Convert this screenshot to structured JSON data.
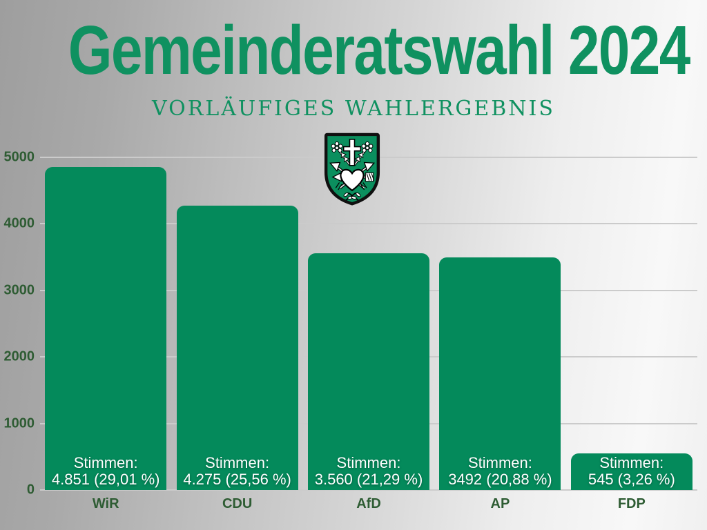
{
  "header": {
    "title": "Gemeinderatswahl 2024",
    "subtitle": "VORLÄUFIGES WAHLERGEBNIS"
  },
  "icons": {
    "crest": "coat-of-arms"
  },
  "theme": {
    "title_green": "#0f9160",
    "bar_green": "#048a5b",
    "label_green": "#2e5c33",
    "grid_color": "#cbcbcb",
    "bar_text": "#ffffff",
    "background_left": "#9e9e9e",
    "background_right": "#f0f0f0"
  },
  "chart_data": {
    "type": "bar",
    "title": "Gemeinderatswahl 2024",
    "subtitle": "VORLÄUFIGES WAHLERGEBNIS",
    "categories": [
      "WiR",
      "CDU",
      "AfD",
      "AP",
      "FDP"
    ],
    "values": [
      4851,
      4275,
      3560,
      3492,
      545
    ],
    "percentages": [
      29.01,
      25.56,
      21.29,
      20.88,
      3.26
    ],
    "bar_labels": [
      [
        "Stimmen:",
        "4.851 (29,01 %)"
      ],
      [
        "Stimmen:",
        "4.275 (25,56 %)"
      ],
      [
        "Stimmen:",
        "3.560 (21,29 %)"
      ],
      [
        "Stimmen:",
        "3492 (20,88 %)"
      ],
      [
        "Stimmen:",
        "545 (3,26 %)"
      ]
    ],
    "ylim": [
      0,
      5000
    ],
    "yticks": [
      5000,
      4000,
      3000,
      2000,
      1000,
      0
    ],
    "grid": true,
    "legend": false,
    "xlabel": "",
    "ylabel": ""
  }
}
